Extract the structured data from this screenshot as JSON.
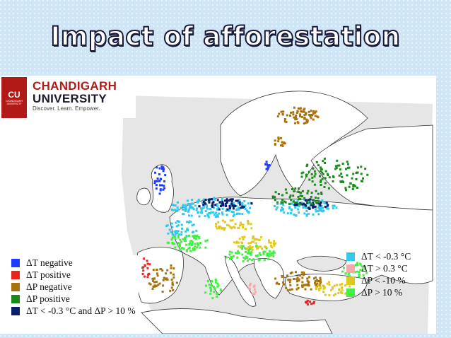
{
  "slide": {
    "title": "Impact of afforestation"
  },
  "logo": {
    "badge_text": "CU",
    "badge_sub": "CHANDIGARH UNIVERSITY",
    "line1": "CHANDIGARH",
    "line2": "UNIVERSITY",
    "tagline": "Discover. Learn. Empower."
  },
  "legend_left": [
    {
      "label": "ΔT negative",
      "color": "#1e3cff"
    },
    {
      "label": "ΔT positive",
      "color": "#e8241c"
    },
    {
      "label": "ΔP negative",
      "color": "#a8720c"
    },
    {
      "label": "ΔP positive",
      "color": "#1a8a1a"
    },
    {
      "label": "ΔT < -0.3 °C and ΔP > 10 %",
      "color": "#0a1e6e"
    }
  ],
  "legend_right": [
    {
      "label": "ΔT < -0.3 °C",
      "color": "#33c8f0"
    },
    {
      "label": "ΔT > 0.3 °C",
      "color": "#f4a8a8"
    },
    {
      "label": "ΔP < -10 %",
      "color": "#e0c81e"
    },
    {
      "label": "ΔP > 10 %",
      "color": "#44ee44"
    }
  ],
  "map": {
    "domain_color": "#e8e8e8",
    "land_color": "#ffffff",
    "outline_color": "#333333"
  }
}
